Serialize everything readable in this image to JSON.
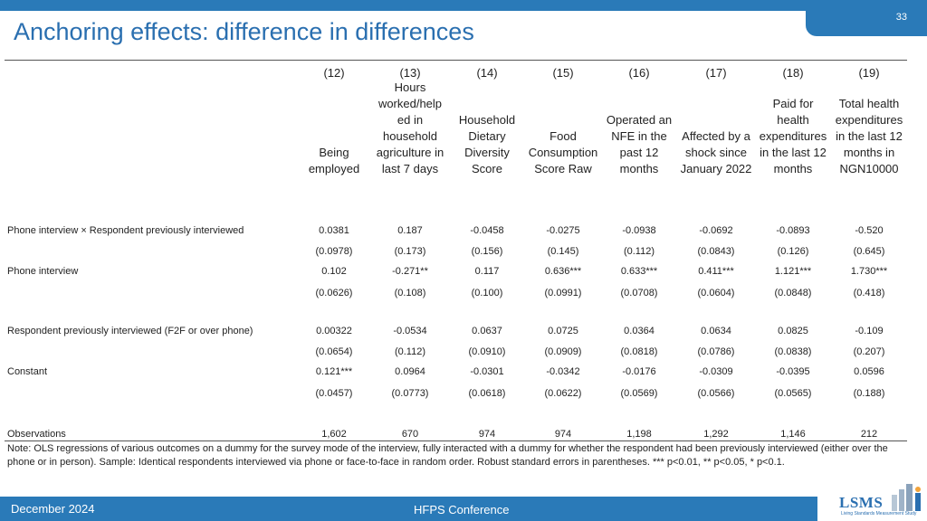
{
  "page_number": "33",
  "title": "Anchoring effects: difference in differences",
  "columns": [
    {
      "num": "(12)",
      "title": "Being employed"
    },
    {
      "num": "(13)",
      "title": "Hours worked/helped in household agriculture in last 7 days"
    },
    {
      "num": "(14)",
      "title": "Household Dietary Diversity Score"
    },
    {
      "num": "(15)",
      "title": "Food Consumption Score Raw"
    },
    {
      "num": "(16)",
      "title": "Operated an NFE in the past 12 months"
    },
    {
      "num": "(17)",
      "title": "Affected by a shock since January 2022"
    },
    {
      "num": "(18)",
      "title": "Paid for health expenditures in the last 12 months"
    },
    {
      "num": "(19)",
      "title": "Total health expenditures in the last 12 months in NGN10000"
    }
  ],
  "column_title_lines": [
    [
      "Being",
      "employed"
    ],
    [
      "Hours",
      "worked/help",
      "ed in",
      "household",
      "agriculture in",
      "last 7 days"
    ],
    [
      "Household",
      "Dietary",
      "Diversity",
      "Score"
    ],
    [
      "Food",
      "Consumption",
      "Score Raw"
    ],
    [
      "Operated an",
      "NFE in the",
      "past 12",
      "months"
    ],
    [
      "Affected by a",
      "shock since",
      "January 2022"
    ],
    [
      "Paid for",
      "health",
      "expenditures",
      "in the last 12",
      "months"
    ],
    [
      "Total health",
      "expenditures",
      "in the last 12",
      "months in",
      "NGN10000"
    ]
  ],
  "rows": [
    {
      "label": "Phone interview × Respondent previously interviewed",
      "coef": [
        "0.0381",
        "0.187",
        "-0.0458",
        "-0.0275",
        "-0.0938",
        "-0.0692",
        "-0.0893",
        "-0.520"
      ],
      "se": [
        "(0.0978)",
        "(0.173)",
        "(0.156)",
        "(0.145)",
        "(0.112)",
        "(0.0843)",
        "(0.126)",
        "(0.645)"
      ]
    },
    {
      "label": "Phone interview",
      "coef": [
        "0.102",
        "-0.271**",
        "0.117",
        "0.636***",
        "0.633***",
        "0.411***",
        "1.121***",
        "1.730***"
      ],
      "se": [
        "(0.0626)",
        "(0.108)",
        "(0.100)",
        "(0.0991)",
        "(0.0708)",
        "(0.0604)",
        "(0.0848)",
        "(0.418)"
      ]
    },
    {
      "label": "Respondent previously interviewed (F2F or over phone)",
      "coef": [
        "0.00322",
        "-0.0534",
        "0.0637",
        "0.0725",
        "0.0364",
        "0.0634",
        "0.0825",
        "-0.109"
      ],
      "se": [
        "(0.0654)",
        "(0.112)",
        "(0.0910)",
        "(0.0909)",
        "(0.0818)",
        "(0.0786)",
        "(0.0838)",
        "(0.207)"
      ]
    },
    {
      "label": "Constant",
      "coef": [
        "0.121***",
        "0.0964",
        "-0.0301",
        "-0.0342",
        "-0.0176",
        "-0.0309",
        "-0.0395",
        "0.0596"
      ],
      "se": [
        "(0.0457)",
        "(0.0773)",
        "(0.0618)",
        "(0.0622)",
        "(0.0569)",
        "(0.0566)",
        "(0.0565)",
        "(0.188)"
      ]
    }
  ],
  "observations": {
    "label": "Observations",
    "values": [
      "1,602",
      "670",
      "974",
      "974",
      "1,198",
      "1,292",
      "1,146",
      "212"
    ]
  },
  "note": "Note: OLS regressions of various outcomes on a dummy for the survey mode of the interview, fully interacted with a dummy for whether the respondent had been previously interviewed (either over the phone or in person). Sample: Identical respondents interviewed via phone or face-to-face in random order. Robust standard errors in parentheses. *** p<0.01, ** p<0.05, * p<0.1.",
  "footer": {
    "date": "December 2024",
    "conference": "HFPS Conference"
  },
  "logo": {
    "text": "LSMS",
    "subtitle": "Living Standards Measurement Study"
  },
  "colors": {
    "brand_blue": "#2a7ab8",
    "title_blue": "#2a6fb0"
  }
}
